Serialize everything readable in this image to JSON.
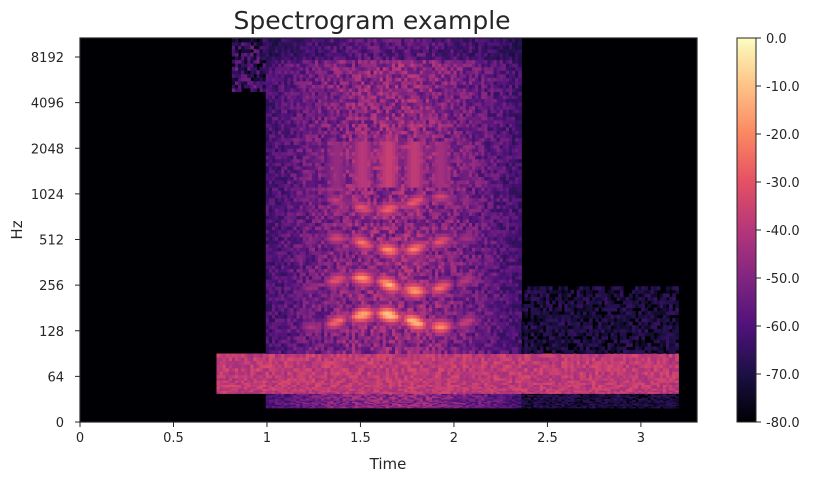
{
  "chart_data": {
    "type": "heatmap",
    "title": "Spectrogram example",
    "xlabel": "Time",
    "ylabel": "Hz",
    "x_ticks": [
      "0",
      "0.5",
      "1",
      "1.5",
      "2",
      "2.5",
      "3"
    ],
    "x_tick_values": [
      0,
      0.5,
      1,
      1.5,
      2,
      2.5,
      3
    ],
    "xlim": [
      0,
      3.3
    ],
    "y_ticks": [
      "0",
      "64",
      "128",
      "256",
      "512",
      "1024",
      "2048",
      "4096",
      "8192"
    ],
    "y_scale": "log2",
    "colorbar_ticks": [
      "0.0",
      "-10.0",
      "-20.0",
      "-30.0",
      "-40.0",
      "-50.0",
      "-60.0",
      "-70.0",
      "-80.0"
    ],
    "colorbar_range_db": [
      -80,
      0
    ],
    "colormap": "magma",
    "signal_time_range": [
      0.73,
      3.2
    ],
    "speech_time_range": [
      0.98,
      2.35
    ],
    "formant_bands_hz": [
      150,
      260,
      480,
      900
    ],
    "low_frequency_band_hz": 60,
    "grid": false
  }
}
